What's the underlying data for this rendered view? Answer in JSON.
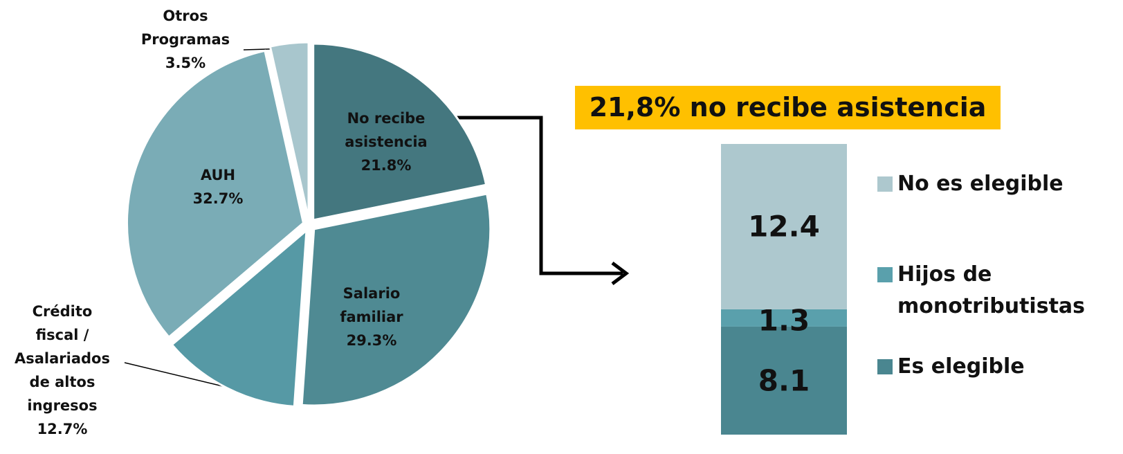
{
  "chart_data": [
    {
      "type": "pie",
      "categories": [
        "No recibe asistencia",
        "Salario familiar",
        "Crédito fiscal / Asalariados de altos ingresos",
        "AUH",
        "Otros Programas"
      ],
      "values": [
        21.8,
        29.3,
        12.7,
        32.7,
        3.5
      ],
      "value_labels": [
        "21.8%",
        "29.3%",
        "12.7%",
        "32.7%",
        "3.5%"
      ],
      "colors": [
        "#44777f",
        "#4f8a93",
        "#5699a5",
        "#7aacb6",
        "#a8c6cd"
      ]
    },
    {
      "type": "stacked_bar",
      "title": "21,8% no recibe asistencia",
      "series": [
        {
          "name": "Es elegible",
          "color": "#4a8690",
          "values": [
            8.1
          ]
        },
        {
          "name": "Hijos de monotributistas",
          "color": "#5aa0ac",
          "values": [
            1.3
          ]
        },
        {
          "name": "No es elegible",
          "color": "#adc8ce",
          "values": [
            12.4
          ]
        }
      ]
    }
  ]
}
